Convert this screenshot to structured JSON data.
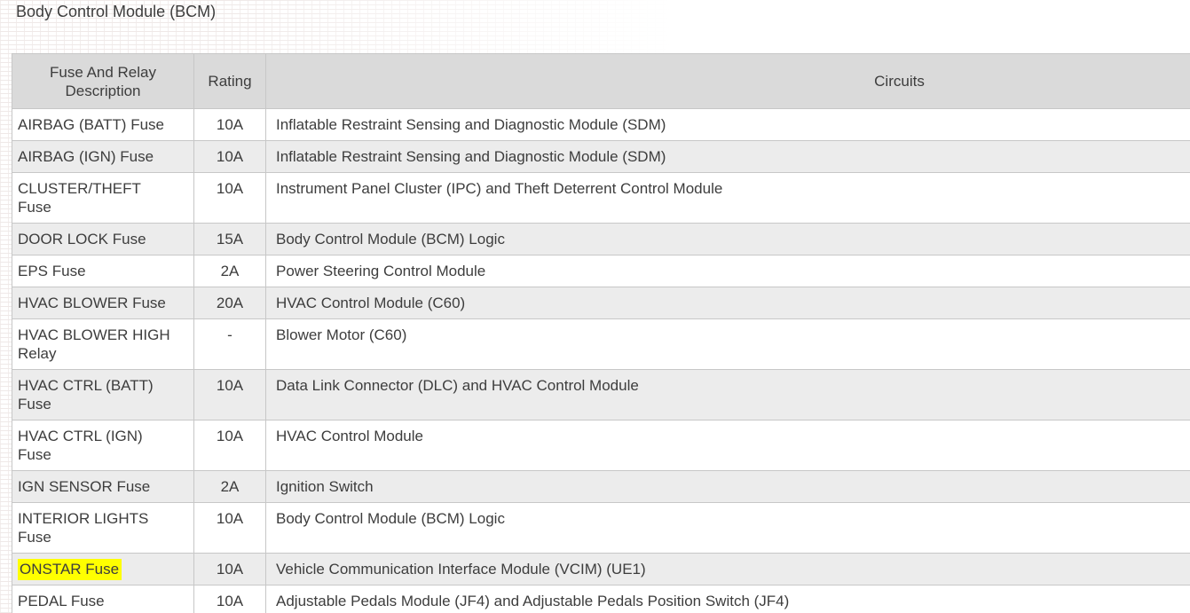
{
  "page": {
    "title": "Body Control Module (BCM)"
  },
  "colors": {
    "text": "#3d3d3d",
    "border": "#c7c7c7",
    "header_bg": "#dadada",
    "stripe_bg": "#ececec",
    "highlight": "#ffff00"
  },
  "table": {
    "headers": {
      "description": "Fuse And Relay\nDescription",
      "rating": "Rating",
      "circuits": "Circuits"
    },
    "rows": [
      {
        "description": "AIRBAG (BATT) Fuse",
        "rating": "10A",
        "circuits": "Inflatable Restraint Sensing and Diagnostic Module (SDM)",
        "highlight": false
      },
      {
        "description": "AIRBAG (IGN) Fuse",
        "rating": "10A",
        "circuits": "Inflatable Restraint Sensing and Diagnostic Module (SDM)",
        "highlight": false
      },
      {
        "description": "CLUSTER/THEFT\nFuse",
        "rating": "10A",
        "circuits": "Instrument Panel Cluster (IPC) and Theft Deterrent Control Module",
        "highlight": false
      },
      {
        "description": "DOOR LOCK Fuse",
        "rating": "15A",
        "circuits": "Body Control Module (BCM) Logic",
        "highlight": false
      },
      {
        "description": "EPS Fuse",
        "rating": "2A",
        "circuits": "Power Steering Control Module",
        "highlight": false
      },
      {
        "description": "HVAC BLOWER Fuse",
        "rating": "20A",
        "circuits": "HVAC Control Module (C60)",
        "highlight": false
      },
      {
        "description": "HVAC BLOWER HIGH\nRelay",
        "rating": "-",
        "circuits": "Blower Motor (C60)",
        "highlight": false
      },
      {
        "description": "HVAC CTRL (BATT)\nFuse",
        "rating": "10A",
        "circuits": "Data Link Connector (DLC) and HVAC Control Module",
        "highlight": false
      },
      {
        "description": "HVAC CTRL (IGN)\nFuse",
        "rating": "10A",
        "circuits": "HVAC Control Module",
        "highlight": false
      },
      {
        "description": "IGN SENSOR Fuse",
        "rating": "2A",
        "circuits": "Ignition Switch",
        "highlight": false
      },
      {
        "description": "INTERIOR LIGHTS\nFuse",
        "rating": "10A",
        "circuits": "Body Control Module (BCM) Logic",
        "highlight": false
      },
      {
        "description": "ONSTAR Fuse",
        "rating": "10A",
        "circuits": "Vehicle Communication Interface Module (VCIM) (UE1)",
        "highlight": true
      },
      {
        "description": "PEDAL Fuse",
        "rating": "10A",
        "circuits": "Adjustable Pedals Module (JF4) and Adjustable Pedals Position Switch (JF4)",
        "highlight": false
      }
    ]
  }
}
